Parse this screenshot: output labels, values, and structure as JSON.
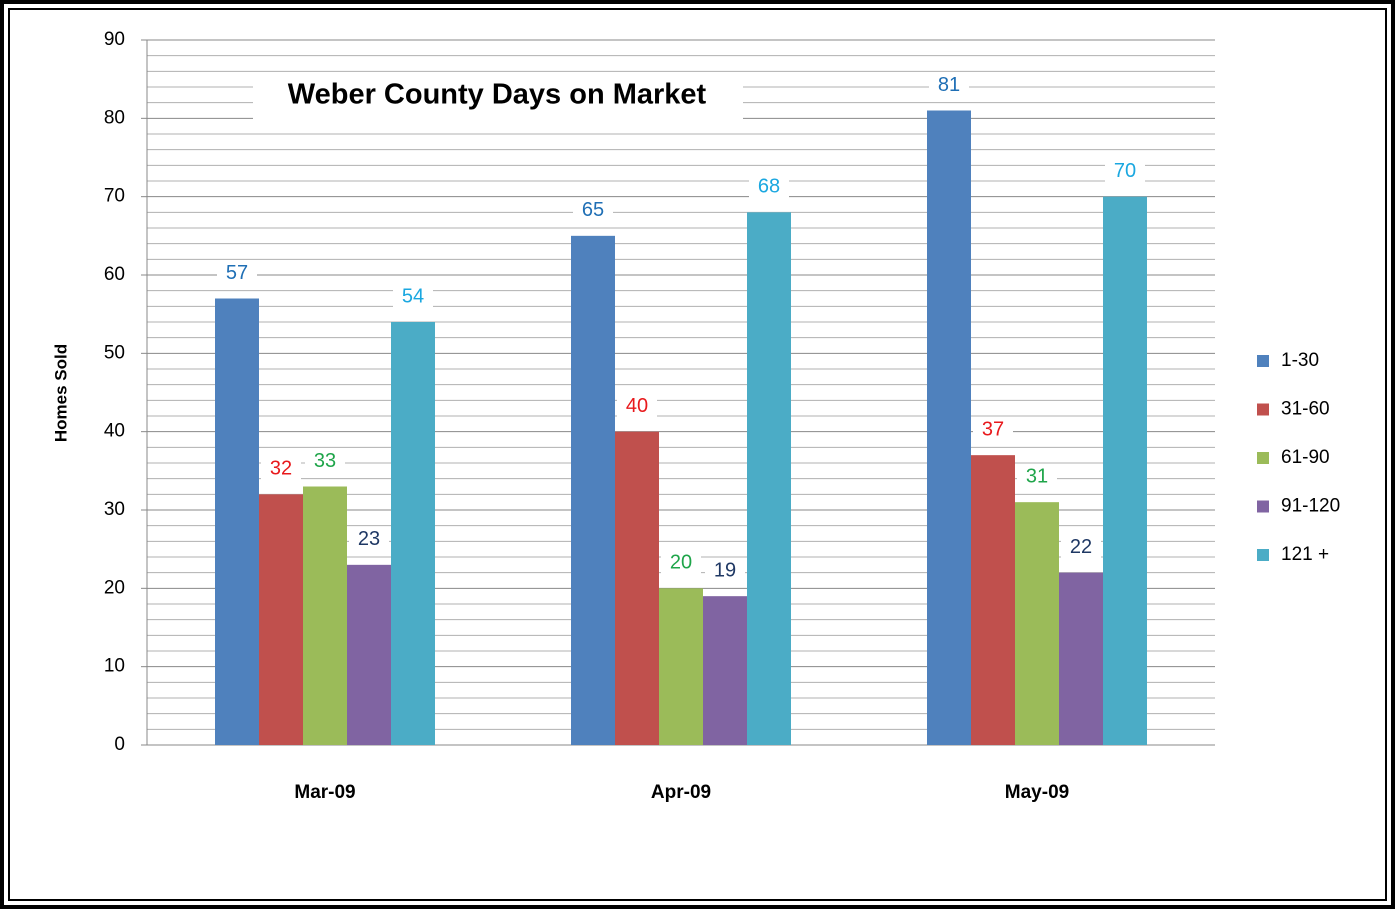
{
  "chart_data": {
    "type": "bar",
    "title": "Weber County Days on Market",
    "y_label": "Homes Sold",
    "categories": [
      "Mar-09",
      "Apr-09",
      "May-09"
    ],
    "series": [
      {
        "name": "1-30",
        "color": "#4f81bd",
        "label_color": "#1f6fb5",
        "values": [
          57,
          65,
          81
        ]
      },
      {
        "name": "31-60",
        "color": "#c0504d",
        "label_color": "#e8191c",
        "values": [
          32,
          40,
          37
        ]
      },
      {
        "name": "61-90",
        "color": "#9bbb59",
        "label_color": "#1fa54a",
        "values": [
          33,
          20,
          31
        ]
      },
      {
        "name": "91-120",
        "color": "#8064a2",
        "label_color": "#1f3864",
        "values": [
          23,
          19,
          22
        ]
      },
      {
        "name": "121 +",
        "color": "#4bacc6",
        "label_color": "#1aa7e0",
        "values": [
          54,
          68,
          70
        ]
      }
    ],
    "ylim": [
      0,
      90
    ],
    "yticks": [
      0,
      10,
      20,
      30,
      40,
      50,
      60,
      70,
      80,
      90
    ],
    "yminorticks": [
      2,
      4,
      6,
      8,
      12,
      14,
      16,
      18,
      22,
      24,
      26,
      28,
      32,
      34,
      36,
      38,
      42,
      44,
      46,
      48,
      52,
      54,
      56,
      58,
      62,
      64,
      66,
      68,
      72,
      74,
      76,
      78,
      82,
      84,
      86,
      88
    ],
    "grid": true,
    "legend": "right"
  }
}
